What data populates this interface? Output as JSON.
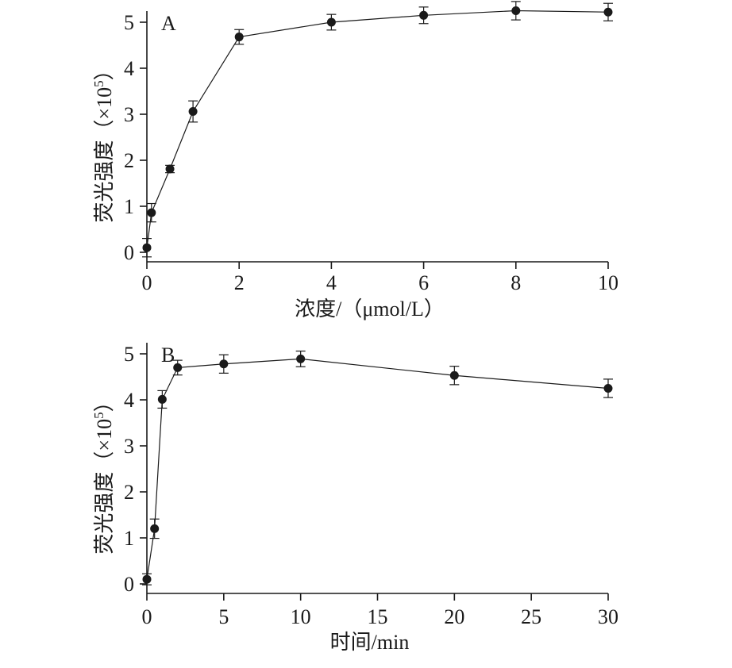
{
  "chart_data": [
    {
      "type": "line",
      "panel_label": "A",
      "xlabel": "浓度/（μmol/L）",
      "ylabel": "荧光强度（×10⁵）",
      "ylabel_main": "荧光强度（×10",
      "ylabel_exp": "5",
      "ylabel_close": "）",
      "xlim": [
        0,
        10
      ],
      "ylim": [
        0,
        5
      ],
      "xticks": [
        0,
        2,
        4,
        6,
        8,
        10
      ],
      "yticks": [
        0,
        1,
        2,
        3,
        4,
        5
      ],
      "grid": false,
      "series": [
        {
          "x": [
            0,
            0.1,
            0.5,
            1,
            2,
            4,
            6,
            8,
            10
          ],
          "y": [
            0.1,
            0.86,
            1.81,
            3.06,
            4.68,
            5.0,
            5.15,
            5.25,
            5.22
          ],
          "error": [
            0.2,
            0.2,
            0.08,
            0.23,
            0.16,
            0.17,
            0.18,
            0.2,
            0.19
          ]
        }
      ]
    },
    {
      "type": "line",
      "panel_label": "B",
      "xlabel": "时间/min",
      "ylabel": "荧光强度（×10⁵）",
      "ylabel_main": "荧光强度（×10",
      "ylabel_exp": "5",
      "ylabel_close": "）",
      "xlim": [
        0,
        30
      ],
      "ylim": [
        0,
        5
      ],
      "xticks": [
        0,
        5,
        10,
        15,
        20,
        25,
        30
      ],
      "yticks": [
        0,
        1,
        2,
        3,
        4,
        5
      ],
      "grid": false,
      "series": [
        {
          "x": [
            0,
            0.5,
            1,
            2,
            5,
            10,
            20,
            30
          ],
          "y": [
            0.1,
            1.2,
            4.01,
            4.7,
            4.78,
            4.89,
            4.53,
            4.25
          ],
          "error": [
            0.12,
            0.21,
            0.19,
            0.16,
            0.2,
            0.17,
            0.2,
            0.2
          ]
        }
      ]
    }
  ]
}
